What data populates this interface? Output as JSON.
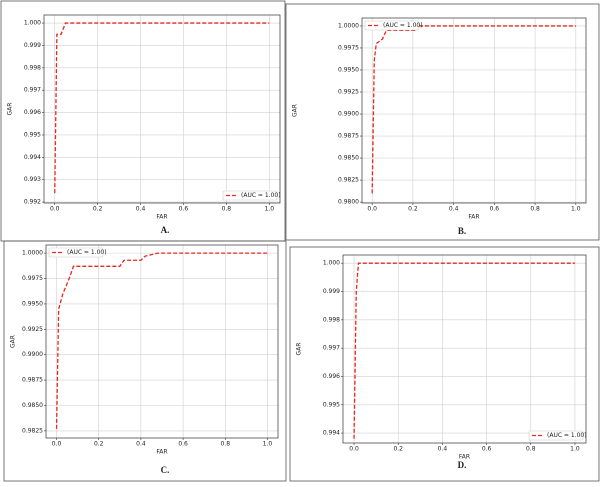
{
  "chart_data": [
    {
      "type": "line",
      "caption": "A.",
      "xlabel": "FAR",
      "ylabel": "GAR",
      "grid": true,
      "legend": "lower right",
      "x": [
        0,
        0.01,
        0.03,
        0.05,
        1
      ],
      "series": [
        {
          "name": "(AUC = 1.00)",
          "color": "#e8271f",
          "values": [
            0.9924,
            0.9995,
            0.9995,
            1.0,
            1.0
          ]
        }
      ],
      "xlim": [
        -0.05,
        1.05
      ],
      "ylim": [
        0.99196,
        1.00036
      ],
      "xticks": [
        {
          "value": 0,
          "label": "0.0"
        },
        0.2,
        0.4,
        0.6,
        0.8,
        {
          "value": 1,
          "label": "1.0"
        }
      ],
      "yticks": [
        0.992,
        0.993,
        0.994,
        0.995,
        0.996,
        0.997,
        0.998,
        0.999,
        {
          "value": 1,
          "label": "1.000"
        }
      ]
    },
    {
      "type": "line",
      "caption": "B.",
      "xlabel": "FAR",
      "ylabel": "GAR",
      "grid": true,
      "legend": "upper left",
      "x": [
        0,
        0.01,
        0.02,
        0.05,
        0.07,
        0.22,
        0.22,
        1
      ],
      "series": [
        {
          "name": "(AUC = 1.00)",
          "color": "#e8271f",
          "values": [
            0.981,
            0.996,
            0.998,
            0.9985,
            0.9995,
            0.9995,
            1.0,
            1.0
          ]
        }
      ],
      "xlim": [
        -0.05,
        1.05
      ],
      "ylim": [
        0.9799,
        1.0009
      ],
      "xticks": [
        {
          "value": 0,
          "label": "0.0"
        },
        0.2,
        0.4,
        0.6,
        0.8,
        {
          "value": 1,
          "label": "1.0"
        }
      ],
      "yticks": [
        {
          "value": 0.98,
          "label": "0.9800"
        },
        0.9825,
        {
          "value": 0.985,
          "label": "0.9850"
        },
        0.9875,
        {
          "value": 0.99,
          "label": "0.9900"
        },
        0.9925,
        {
          "value": 0.995,
          "label": "0.9950"
        },
        0.9975,
        {
          "value": 1,
          "label": "1.0000"
        }
      ]
    },
    {
      "type": "line",
      "caption": "C.",
      "xlabel": "FAR",
      "ylabel": "GAR",
      "grid": true,
      "legend": "upper left",
      "x": [
        0,
        0.01,
        0.03,
        0.06,
        0.08,
        0.3,
        0.32,
        0.4,
        0.42,
        0.48,
        1
      ],
      "series": [
        {
          "name": "(AUC = 1.00)",
          "color": "#e8271f",
          "values": [
            0.9827,
            0.9945,
            0.996,
            0.9975,
            0.9987,
            0.9987,
            0.9993,
            0.9993,
            0.9997,
            1.0,
            1.0
          ]
        }
      ],
      "xlim": [
        -0.05,
        1.05
      ],
      "ylim": [
        0.9818,
        1.0008
      ],
      "xticks": [
        {
          "value": 0,
          "label": "0.0"
        },
        0.2,
        0.4,
        0.6,
        0.8,
        {
          "value": 1,
          "label": "1.0"
        }
      ],
      "yticks": [
        0.9825,
        {
          "value": 0.985,
          "label": "0.9850"
        },
        0.9875,
        {
          "value": 0.99,
          "label": "0.9900"
        },
        0.9925,
        {
          "value": 0.995,
          "label": "0.9950"
        },
        0.9975,
        {
          "value": 1,
          "label": "1.0000"
        }
      ]
    },
    {
      "type": "line",
      "caption": "D.",
      "xlabel": "FAR",
      "ylabel": "GAR",
      "grid": true,
      "legend": "lower right",
      "x": [
        0,
        0.01,
        0.02,
        1
      ],
      "series": [
        {
          "name": "(AUC = 1.00)",
          "color": "#e8271f",
          "values": [
            0.9938,
            0.999,
            1.0,
            1.0
          ]
        }
      ],
      "xlim": [
        -0.05,
        1.05
      ],
      "ylim": [
        0.99365,
        1.00029
      ],
      "xticks": [
        {
          "value": 0,
          "label": "0.0"
        },
        0.2,
        0.4,
        0.6,
        0.8,
        {
          "value": 1,
          "label": "1.0"
        }
      ],
      "yticks": [
        0.994,
        0.995,
        0.996,
        0.997,
        0.998,
        0.999,
        {
          "value": 1,
          "label": "1.000"
        }
      ]
    }
  ]
}
